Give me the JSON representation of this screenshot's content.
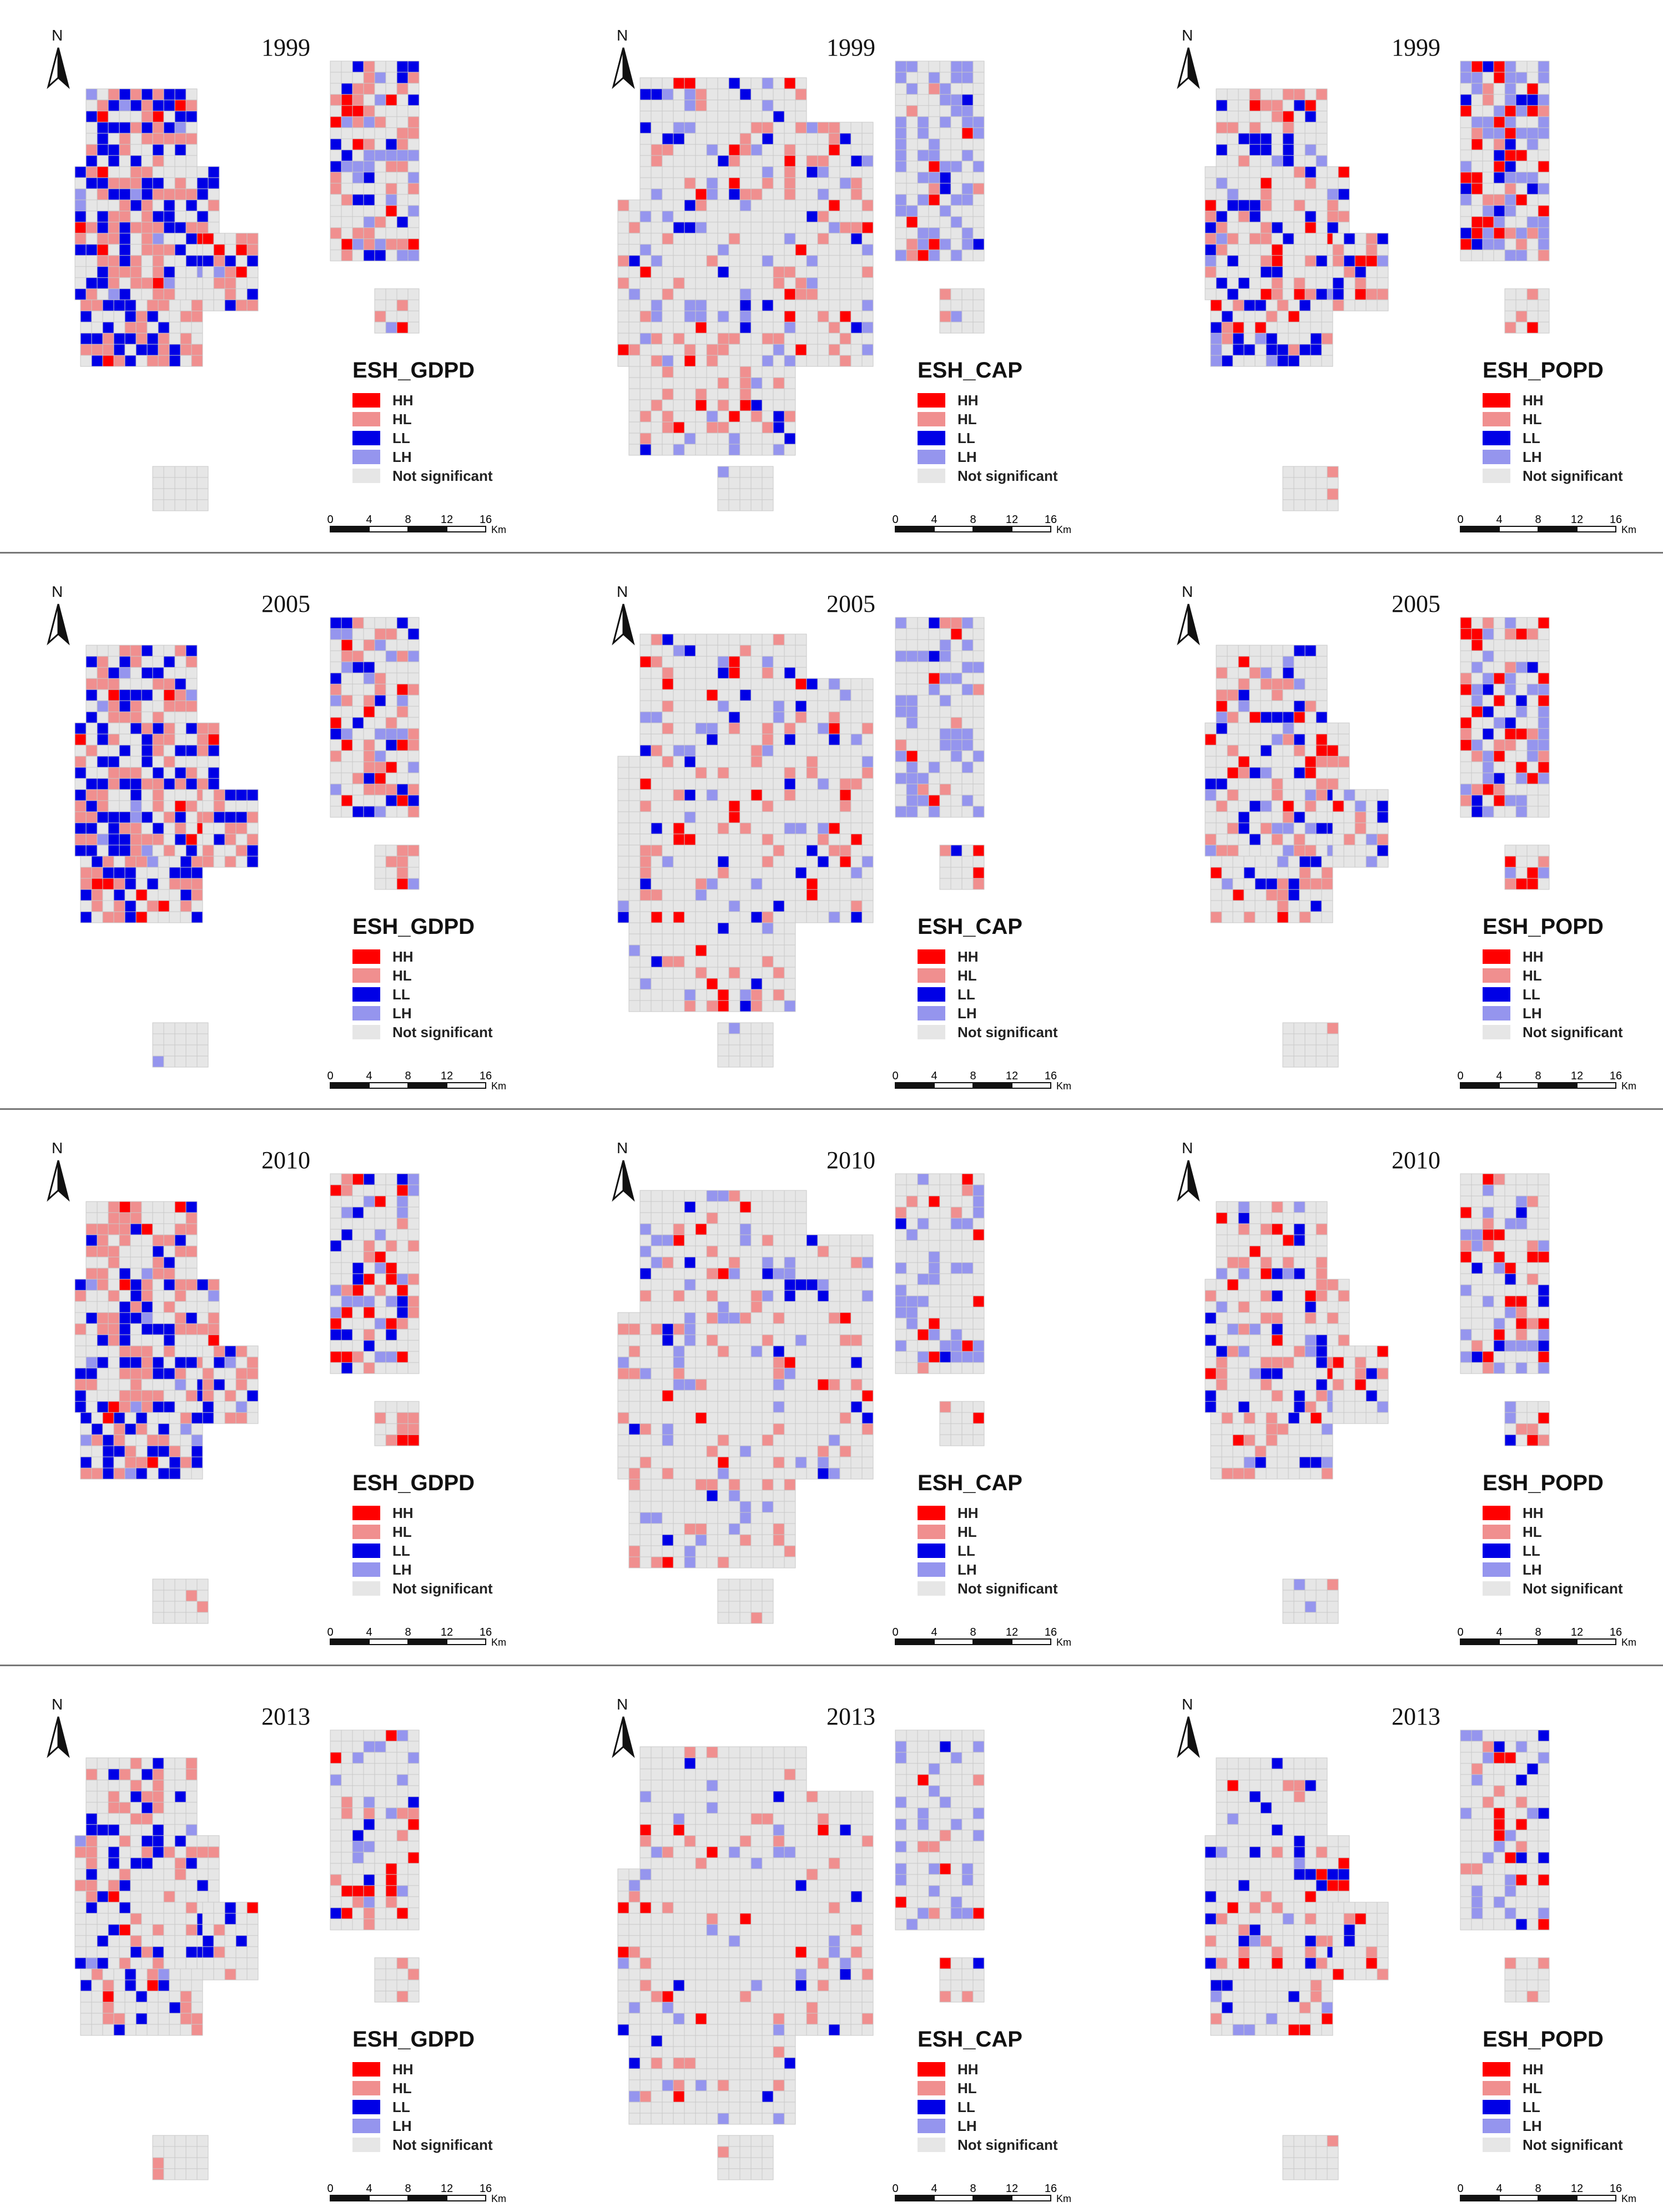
{
  "figure": {
    "rows": [
      {
        "year": "1999"
      },
      {
        "year": "2005"
      },
      {
        "year": "2010"
      },
      {
        "year": "2013"
      }
    ],
    "columns": [
      {
        "variable": "ESH_GDPD"
      },
      {
        "variable": "ESH_CAP"
      },
      {
        "variable": "ESH_POPD"
      }
    ],
    "north_label": "N",
    "legend_items": [
      {
        "label": "HH",
        "color": "#ff0000"
      },
      {
        "label": "HL",
        "color": "#f08f8f"
      },
      {
        "label": "LL",
        "color": "#0000e6"
      },
      {
        "label": "LH",
        "color": "#9595ee"
      },
      {
        "label": "Not significant",
        "color": "#e6e6e6"
      }
    ],
    "scale_bar": {
      "ticks": [
        "0",
        "4",
        "8",
        "12",
        "16"
      ],
      "unit": "Km"
    }
  }
}
